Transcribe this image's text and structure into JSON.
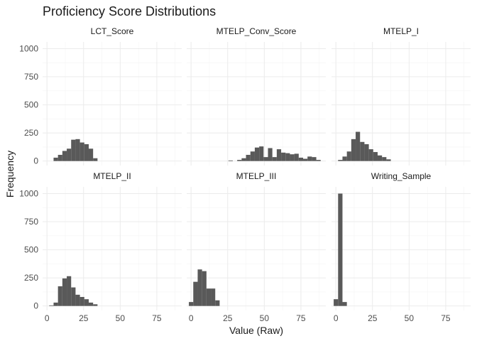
{
  "chart_data": {
    "type": "bar",
    "title": "Proficiency Score Distributions",
    "xlabel": "Value (Raw)",
    "ylabel": "Frequency",
    "xlim": [
      -3,
      92
    ],
    "ylim": [
      -40,
      1060
    ],
    "x_ticks": [
      0,
      25,
      50,
      75
    ],
    "y_ticks": [
      0,
      250,
      500,
      750,
      1000
    ],
    "bin_width": 3,
    "grid": true,
    "panels": [
      {
        "name": "LCT_Score",
        "bins": [
          {
            "x": 6,
            "y": 30
          },
          {
            "x": 9,
            "y": 55
          },
          {
            "x": 12,
            "y": 90
          },
          {
            "x": 15,
            "y": 110
          },
          {
            "x": 18,
            "y": 190
          },
          {
            "x": 21,
            "y": 195
          },
          {
            "x": 24,
            "y": 165
          },
          {
            "x": 27,
            "y": 150
          },
          {
            "x": 30,
            "y": 110
          },
          {
            "x": 33,
            "y": 25
          }
        ]
      },
      {
        "name": "MTELP_Conv_Score",
        "bins": [
          {
            "x": 27,
            "y": 5
          },
          {
            "x": 33,
            "y": 10
          },
          {
            "x": 36,
            "y": 25
          },
          {
            "x": 39,
            "y": 55
          },
          {
            "x": 42,
            "y": 85
          },
          {
            "x": 45,
            "y": 120
          },
          {
            "x": 48,
            "y": 130
          },
          {
            "x": 51,
            "y": 35
          },
          {
            "x": 54,
            "y": 115
          },
          {
            "x": 57,
            "y": 35
          },
          {
            "x": 60,
            "y": 105
          },
          {
            "x": 63,
            "y": 75
          },
          {
            "x": 66,
            "y": 70
          },
          {
            "x": 69,
            "y": 60
          },
          {
            "x": 72,
            "y": 65
          },
          {
            "x": 75,
            "y": 30
          },
          {
            "x": 78,
            "y": 20
          },
          {
            "x": 81,
            "y": 40
          },
          {
            "x": 84,
            "y": 35
          },
          {
            "x": 87,
            "y": 10
          }
        ]
      },
      {
        "name": "MTELP_I",
        "bins": [
          {
            "x": 3,
            "y": 10
          },
          {
            "x": 6,
            "y": 40
          },
          {
            "x": 9,
            "y": 85
          },
          {
            "x": 12,
            "y": 195
          },
          {
            "x": 15,
            "y": 260
          },
          {
            "x": 18,
            "y": 170
          },
          {
            "x": 21,
            "y": 150
          },
          {
            "x": 24,
            "y": 105
          },
          {
            "x": 27,
            "y": 80
          },
          {
            "x": 30,
            "y": 50
          },
          {
            "x": 33,
            "y": 35
          },
          {
            "x": 36,
            "y": 15
          }
        ]
      },
      {
        "name": "MTELP_II",
        "bins": [
          {
            "x": 3,
            "y": 5
          },
          {
            "x": 6,
            "y": 30
          },
          {
            "x": 9,
            "y": 175
          },
          {
            "x": 12,
            "y": 245
          },
          {
            "x": 15,
            "y": 265
          },
          {
            "x": 18,
            "y": 165
          },
          {
            "x": 21,
            "y": 100
          },
          {
            "x": 24,
            "y": 80
          },
          {
            "x": 27,
            "y": 60
          },
          {
            "x": 30,
            "y": 30
          },
          {
            "x": 33,
            "y": 15
          }
        ]
      },
      {
        "name": "MTELP_III",
        "bins": [
          {
            "x": 0,
            "y": 35
          },
          {
            "x": 3,
            "y": 215
          },
          {
            "x": 6,
            "y": 325
          },
          {
            "x": 9,
            "y": 310
          },
          {
            "x": 12,
            "y": 155
          },
          {
            "x": 15,
            "y": 155
          },
          {
            "x": 18,
            "y": 50
          }
        ]
      },
      {
        "name": "Writing_Sample",
        "bins": [
          {
            "x": 0,
            "y": 60
          },
          {
            "x": 3,
            "y": 1000
          },
          {
            "x": 6,
            "y": 35
          }
        ]
      }
    ]
  }
}
